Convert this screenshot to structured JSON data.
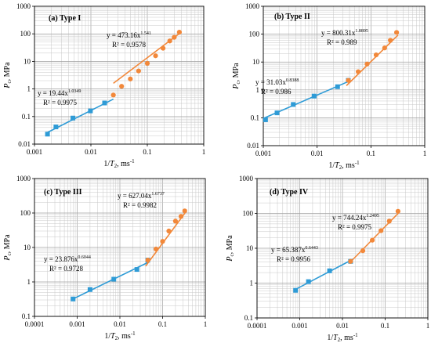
{
  "colors": {
    "blue": "#2e9bd6",
    "orange": "#f2883a",
    "grid": "#c8c8c8",
    "axis": "#000000"
  },
  "chart_data": [
    {
      "type": "scatter",
      "title": "(a) Type I",
      "xlabel": "1/T2, ms-1",
      "xlabel_main": "1/",
      "xlabel_var": "T",
      "xlabel_sub": "2",
      "xlabel_tail": ", ms",
      "xlabel_exp": "-1",
      "ylabel": "Pc, MPa",
      "ylabel_var": "P",
      "ylabel_sub": "c",
      "ylabel_tail": ", MPa",
      "xscale": "log",
      "yscale": "log",
      "xlim": [
        0.001,
        1
      ],
      "ylim": [
        0.01,
        1000
      ],
      "xticks": [
        "0.001",
        "0.01",
        "0.1",
        "1"
      ],
      "yticks": [
        "0.01",
        "0.1",
        "1",
        "10",
        "100",
        "1000"
      ],
      "grid": true,
      "series": [
        {
          "color": "blue",
          "marker": "square",
          "x": [
            0.0017,
            0.0024,
            0.0048,
            0.0098,
            0.0175
          ],
          "y": [
            0.023,
            0.042,
            0.088,
            0.16,
            0.31
          ],
          "fit": {
            "a": 19.44,
            "b": 1.0349,
            "x_range": [
              0.0017,
              0.025
            ]
          },
          "equation": {
            "prefix": "y = 19.44x",
            "exponent": "1.0349",
            "r2": "R² = 0.9975"
          }
        },
        {
          "color": "orange",
          "marker": "circle",
          "x": [
            0.025,
            0.035,
            0.05,
            0.07,
            0.1,
            0.14,
            0.19,
            0.25,
            0.3,
            0.37
          ],
          "y": [
            0.6,
            1.25,
            2.3,
            4.5,
            8.5,
            16,
            30,
            55,
            75,
            115
          ],
          "fit": {
            "a": 473.16,
            "b": 1.541,
            "x_range": [
              0.025,
              0.4
            ]
          },
          "equation": {
            "prefix": "y = 473.16x",
            "exponent": "1.541",
            "r2": "R² = 0.9578"
          }
        }
      ]
    },
    {
      "type": "scatter",
      "title": "(b) Type II",
      "xlabel": "1/T2, ms-1",
      "xlabel_main": "1/",
      "xlabel_var": "T",
      "xlabel_sub": "2",
      "xlabel_tail": ", ms",
      "xlabel_exp": "-1",
      "ylabel": "Pc, MPa",
      "ylabel_var": "P",
      "ylabel_sub": "c",
      "ylabel_tail": ", MPa",
      "xscale": "log",
      "yscale": "log",
      "xlim": [
        0.001,
        1
      ],
      "ylim": [
        0.01,
        1000
      ],
      "xticks": [
        "0.001",
        "0.01",
        "0.1",
        "1"
      ],
      "yticks": [
        "0.01",
        "0.1",
        "1",
        "10",
        "100",
        "1000"
      ],
      "grid": true,
      "series": [
        {
          "color": "blue",
          "marker": "square",
          "x": [
            0.0011,
            0.0018,
            0.0036,
            0.0088,
            0.024,
            0.038
          ],
          "y": [
            0.085,
            0.15,
            0.3,
            0.6,
            1.3,
            2.2
          ],
          "fit": {
            "a": 31.03,
            "b": 0.8388,
            "x_range": [
              0.001,
              0.04
            ]
          },
          "equation": {
            "prefix": "y = 31.03x",
            "exponent": "0.8388",
            "r2": "R² = 0.986"
          }
        },
        {
          "color": "orange",
          "marker": "circle",
          "x": [
            0.038,
            0.058,
            0.085,
            0.125,
            0.18,
            0.23,
            0.3
          ],
          "y": [
            2.2,
            4.5,
            8.5,
            18,
            32,
            60,
            115
          ],
          "fit": {
            "a": 800.31,
            "b": 1.8895,
            "x_range": [
              0.035,
              0.32
            ]
          },
          "equation": {
            "prefix": "y = 800.31x",
            "exponent": "1.8895",
            "r2": "R² = 0.989"
          }
        }
      ]
    },
    {
      "type": "scatter",
      "title": "(c) Type III",
      "xlabel": "1/T2, ms-1",
      "xlabel_main": "1/",
      "xlabel_var": "T",
      "xlabel_sub": "2",
      "xlabel_tail": ", ms",
      "xlabel_exp": "-1",
      "ylabel": "Pc, MPa",
      "ylabel_var": "P",
      "ylabel_sub": "c",
      "ylabel_tail": ", MPa",
      "xscale": "log",
      "yscale": "log",
      "xlim": [
        0.0001,
        1
      ],
      "ylim": [
        0.1,
        1000
      ],
      "xticks": [
        "0.0001",
        "0.001",
        "0.01",
        "0.1",
        "1"
      ],
      "yticks": [
        "0.1",
        "1",
        "10",
        "100",
        "1000"
      ],
      "grid": true,
      "series": [
        {
          "color": "blue",
          "marker": "square",
          "x": [
            0.0008,
            0.002,
            0.0072,
            0.025,
            0.045
          ],
          "y": [
            0.32,
            0.6,
            1.2,
            2.3,
            4.3
          ],
          "fit": {
            "a": 23.876,
            "b": 0.6044,
            "x_range": [
              0.0008,
              0.05
            ]
          },
          "equation": {
            "prefix": "y = 23.876x",
            "exponent": "0.6044",
            "r2": "R² = 0.9728"
          }
        },
        {
          "color": "orange",
          "marker": "circle",
          "x": [
            0.045,
            0.07,
            0.1,
            0.14,
            0.2,
            0.27,
            0.33
          ],
          "y": [
            4.3,
            9,
            15,
            30,
            58,
            80,
            115
          ],
          "fit": {
            "a": 627.04,
            "b": 1.6737,
            "x_range": [
              0.04,
              0.35
            ]
          },
          "equation": {
            "prefix": "y = 627.04x",
            "exponent": "1.6737",
            "r2": "R² = 0.9982"
          }
        }
      ]
    },
    {
      "type": "scatter",
      "title": "(d) Type IV",
      "xlabel": "1/T2, ms-1",
      "xlabel_main": "1/",
      "xlabel_var": "T",
      "xlabel_sub": "2",
      "xlabel_tail": ", ms",
      "xlabel_exp": "-1",
      "ylabel": "Pc, MPa",
      "ylabel_var": "P",
      "ylabel_sub": "c",
      "ylabel_tail": ", MPa",
      "xscale": "log",
      "yscale": "log",
      "xlim": [
        0.0001,
        1
      ],
      "ylim": [
        0.1,
        1000
      ],
      "xticks": [
        "0.0001",
        "0.001",
        "0.01",
        "0.1",
        "1"
      ],
      "yticks": [
        "0.1",
        "1",
        "10",
        "100",
        "1000"
      ],
      "grid": true,
      "series": [
        {
          "color": "blue",
          "marker": "square",
          "x": [
            0.0008,
            0.0016,
            0.005,
            0.0155
          ],
          "y": [
            0.62,
            1.1,
            2.25,
            4.2
          ],
          "fit": {
            "a": 65.387,
            "b": 0.6443,
            "x_range": [
              0.0008,
              0.018
            ]
          },
          "equation": {
            "prefix": "y = 65.387x",
            "exponent": "0.6443",
            "r2": "R² = 0.9956"
          }
        },
        {
          "color": "orange",
          "marker": "circle",
          "x": [
            0.0155,
            0.03,
            0.05,
            0.08,
            0.125,
            0.2
          ],
          "y": [
            4.2,
            8.5,
            17,
            32,
            60,
            115
          ],
          "fit": {
            "a": 744.24,
            "b": 1.2495,
            "x_range": [
              0.015,
              0.22
            ]
          },
          "equation": {
            "prefix": "y = 744.24x",
            "exponent": "1.2495",
            "r2": "R² = 0.9975"
          }
        }
      ]
    }
  ]
}
